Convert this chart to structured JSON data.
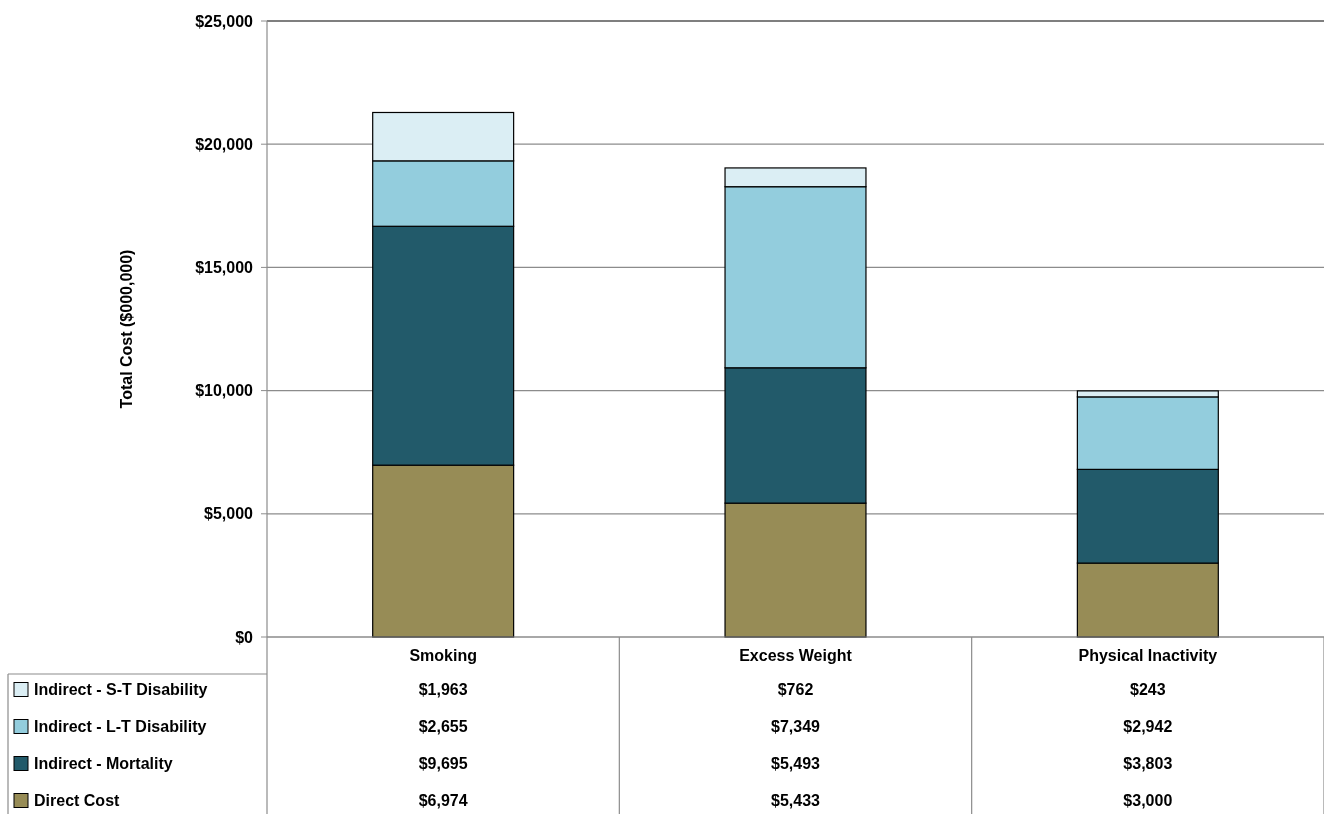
{
  "chart_data": {
    "type": "bar",
    "stacked": true,
    "ylabel": "Total Cost ($000,000)",
    "categories": [
      "Smoking",
      "Excess Weight",
      "Physical Inactivity"
    ],
    "series": [
      {
        "name": "Direct Cost",
        "color": "#978c56",
        "values": [
          6974,
          5433,
          3000
        ],
        "value_labels": [
          "$6,974",
          "$5,433",
          "$3,000"
        ]
      },
      {
        "name": "Indirect - Mortality",
        "color": "#225a6a",
        "values": [
          9695,
          5493,
          3803
        ],
        "value_labels": [
          "$9,695",
          "$5,493",
          "$3,803"
        ]
      },
      {
        "name": "Indirect - L-T Disability",
        "color": "#93cddd",
        "values": [
          2655,
          7349,
          2942
        ],
        "value_labels": [
          "$2,655",
          "$7,349",
          "$2,942"
        ]
      },
      {
        "name": "Indirect - S-T Disability",
        "color": "#dbeef4",
        "values": [
          1963,
          762,
          243
        ],
        "value_labels": [
          "$1,963",
          "$762",
          "$243"
        ]
      }
    ],
    "ylim": [
      0,
      25000
    ],
    "yticks": [
      {
        "value": 0,
        "label": "$0"
      },
      {
        "value": 5000,
        "label": "$5,000"
      },
      {
        "value": 10000,
        "label": "$10,000"
      },
      {
        "value": 15000,
        "label": "$15,000"
      },
      {
        "value": 20000,
        "label": "$20,000"
      },
      {
        "value": 25000,
        "label": "$25,000"
      }
    ],
    "grid": "y",
    "legend": "bottom"
  }
}
